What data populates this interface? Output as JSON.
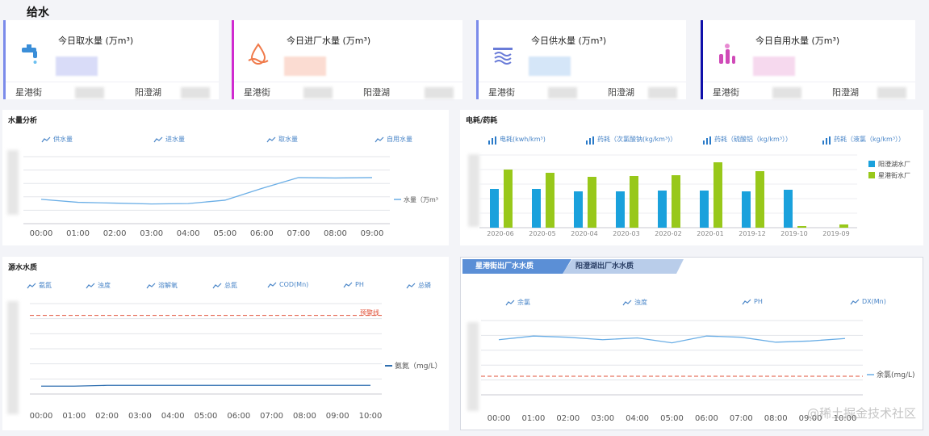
{
  "page": {
    "title": "给水"
  },
  "cards": [
    {
      "title": "今日取水量 (万m³)",
      "icon": "water-tap-icon",
      "accent": "#7b8bea",
      "left_label": "星港街",
      "right_label": "阳澄湖",
      "value_tint": "#d9dcf8"
    },
    {
      "title": "今日进厂水量 (万m³)",
      "icon": "water-drop-icon",
      "accent": "#d02bd0",
      "left_label": "星港街",
      "right_label": "阳澄湖",
      "value_tint": "#fbdcd2"
    },
    {
      "title": "今日供水量 (万m³)",
      "icon": "water-supply-icon",
      "accent": "#7b8bea",
      "left_label": "星港街",
      "right_label": "阳澄湖",
      "value_tint": "#d5e6f8"
    },
    {
      "title": "今日自用水量 (万m³)",
      "icon": "self-use-icon",
      "accent": "#1010aa",
      "left_label": "星港街",
      "right_label": "阳澄湖",
      "value_tint": "#f6d9ee"
    }
  ],
  "water_analysis": {
    "title": "水量分析",
    "legend": [
      "供水量",
      "进水量",
      "取水量",
      "自用水量"
    ],
    "series_label": "水量（万m³",
    "chart_data": {
      "type": "line",
      "categories": [
        "00:00",
        "01:00",
        "02:00",
        "03:00",
        "04:00",
        "05:00",
        "06:00",
        "07:00",
        "08:00",
        "09:00"
      ],
      "series": [
        {
          "name": "水量（万m³",
          "values": [
            0.58,
            0.51,
            0.49,
            0.47,
            0.48,
            0.56,
            0.84,
            1.1,
            1.09,
            1.1
          ]
        }
      ],
      "ylim": [
        0,
        1.6
      ],
      "color": "#6aaee6"
    }
  },
  "energy": {
    "title": "电耗/药耗",
    "legend": [
      "电耗(kwh/km³)",
      "药耗（次氯酸钠(kg/km³)）",
      "药耗（硫酸铝（kg/km³））",
      "药耗（液氯（kg/km³））"
    ],
    "chart_data": {
      "type": "bar",
      "categories": [
        "2020-06",
        "2020-05",
        "2020-04",
        "2020-03",
        "2020-02",
        "2020-01",
        "2019-12",
        "2019-10",
        "2019-09"
      ],
      "series": [
        {
          "name": "阳澄湖水厂",
          "color": "#1aa1dc",
          "values": [
            48,
            48,
            45,
            45,
            46,
            46,
            45,
            47,
            0
          ]
        },
        {
          "name": "星港街水厂",
          "color": "#98c81a",
          "values": [
            72,
            68,
            63,
            64,
            65,
            81,
            70,
            2,
            4
          ]
        }
      ],
      "ylim": [
        0,
        90
      ]
    }
  },
  "source_quality": {
    "title": "源水水质",
    "legend": [
      "氨氮",
      "浊度",
      "溶解氧",
      "总氮",
      "COD(Mn)",
      "PH",
      "总磷"
    ],
    "warning_label": "预警线",
    "series_label": "氨氮（mg/L）",
    "chart_data": {
      "type": "line",
      "categories": [
        "00:00",
        "01:00",
        "02:00",
        "03:00",
        "04:00",
        "05:00",
        "06:00",
        "07:00",
        "08:00",
        "09:00",
        "10:00"
      ],
      "series": [
        {
          "name": "氨氮（mg/L）",
          "values": [
            0.1,
            0.1,
            0.11,
            0.11,
            0.11,
            0.11,
            0.11,
            0.11,
            0.11,
            0.11,
            0.11
          ]
        }
      ],
      "warning": 1.0,
      "ylim": [
        0,
        1.15
      ],
      "color": "#2f6fb0"
    }
  },
  "effluent_quality": {
    "tabs": [
      "星港街出厂水水质",
      "阳澄湖出厂水水质"
    ],
    "legend": [
      "余氯",
      "浊度",
      "PH",
      "DX(Mn)"
    ],
    "series_label": "余氯(mg/L)",
    "chart_data": {
      "type": "line",
      "categories": [
        "00:00",
        "01:00",
        "02:00",
        "03:00",
        "04:00",
        "05:00",
        "06:00",
        "07:00",
        "08:00",
        "09:00",
        "10:00"
      ],
      "series": [
        {
          "name": "余氯(mg/L)",
          "values": [
            0.89,
            0.95,
            0.93,
            0.89,
            0.92,
            0.84,
            0.95,
            0.93,
            0.85,
            0.87,
            0.91
          ]
        }
      ],
      "warning": 0.3,
      "ylim": [
        0,
        1.2
      ],
      "color": "#6aaee6"
    }
  },
  "watermark": "@稀土掘金技术社区"
}
